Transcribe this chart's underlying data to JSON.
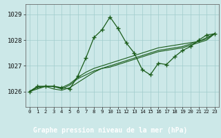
{
  "title": "Graphe pression niveau de la mer (hPa)",
  "bg_color": "#cce8e8",
  "label_bg_color": "#2d6e2d",
  "label_text_color": "#ffffff",
  "grid_color": "#a0cccc",
  "line_color": "#1a5c1a",
  "xlim": [
    -0.5,
    23.5
  ],
  "ylim": [
    1025.4,
    1029.4
  ],
  "yticks": [
    1026,
    1027,
    1028,
    1029
  ],
  "xticks": [
    0,
    1,
    2,
    3,
    4,
    5,
    6,
    7,
    8,
    9,
    10,
    11,
    12,
    13,
    14,
    15,
    16,
    17,
    18,
    19,
    20,
    21,
    22,
    23
  ],
  "series": [
    [
      1026.0,
      1026.2,
      1026.2,
      1026.2,
      1026.15,
      1026.1,
      1026.6,
      1027.3,
      1028.1,
      1028.4,
      1028.9,
      1028.45,
      1027.9,
      1027.5,
      1026.85,
      1026.65,
      1027.1,
      1027.05,
      1027.35,
      1027.6,
      1027.75,
      1028.0,
      1028.2,
      1028.25
    ],
    [
      1026.0,
      1026.2,
      1026.2,
      1026.2,
      1026.15,
      1026.3,
      1026.55,
      1026.75,
      1026.9,
      1027.0,
      1027.1,
      1027.2,
      1027.3,
      1027.4,
      1027.5,
      1027.6,
      1027.7,
      1027.75,
      1027.8,
      1027.85,
      1027.9,
      1027.95,
      1028.1,
      1028.25
    ],
    [
      1026.0,
      1026.15,
      1026.2,
      1026.2,
      1026.1,
      1026.25,
      1026.5,
      1026.65,
      1026.8,
      1026.9,
      1027.0,
      1027.1,
      1027.2,
      1027.3,
      1027.4,
      1027.5,
      1027.6,
      1027.65,
      1027.7,
      1027.75,
      1027.85,
      1027.95,
      1028.05,
      1028.25
    ],
    [
      1026.0,
      1026.1,
      1026.2,
      1026.1,
      1026.05,
      1026.15,
      1026.35,
      1026.55,
      1026.75,
      1026.9,
      1026.95,
      1027.05,
      1027.15,
      1027.25,
      1027.35,
      1027.45,
      1027.55,
      1027.6,
      1027.65,
      1027.7,
      1027.8,
      1027.9,
      1028.0,
      1028.25
    ]
  ]
}
